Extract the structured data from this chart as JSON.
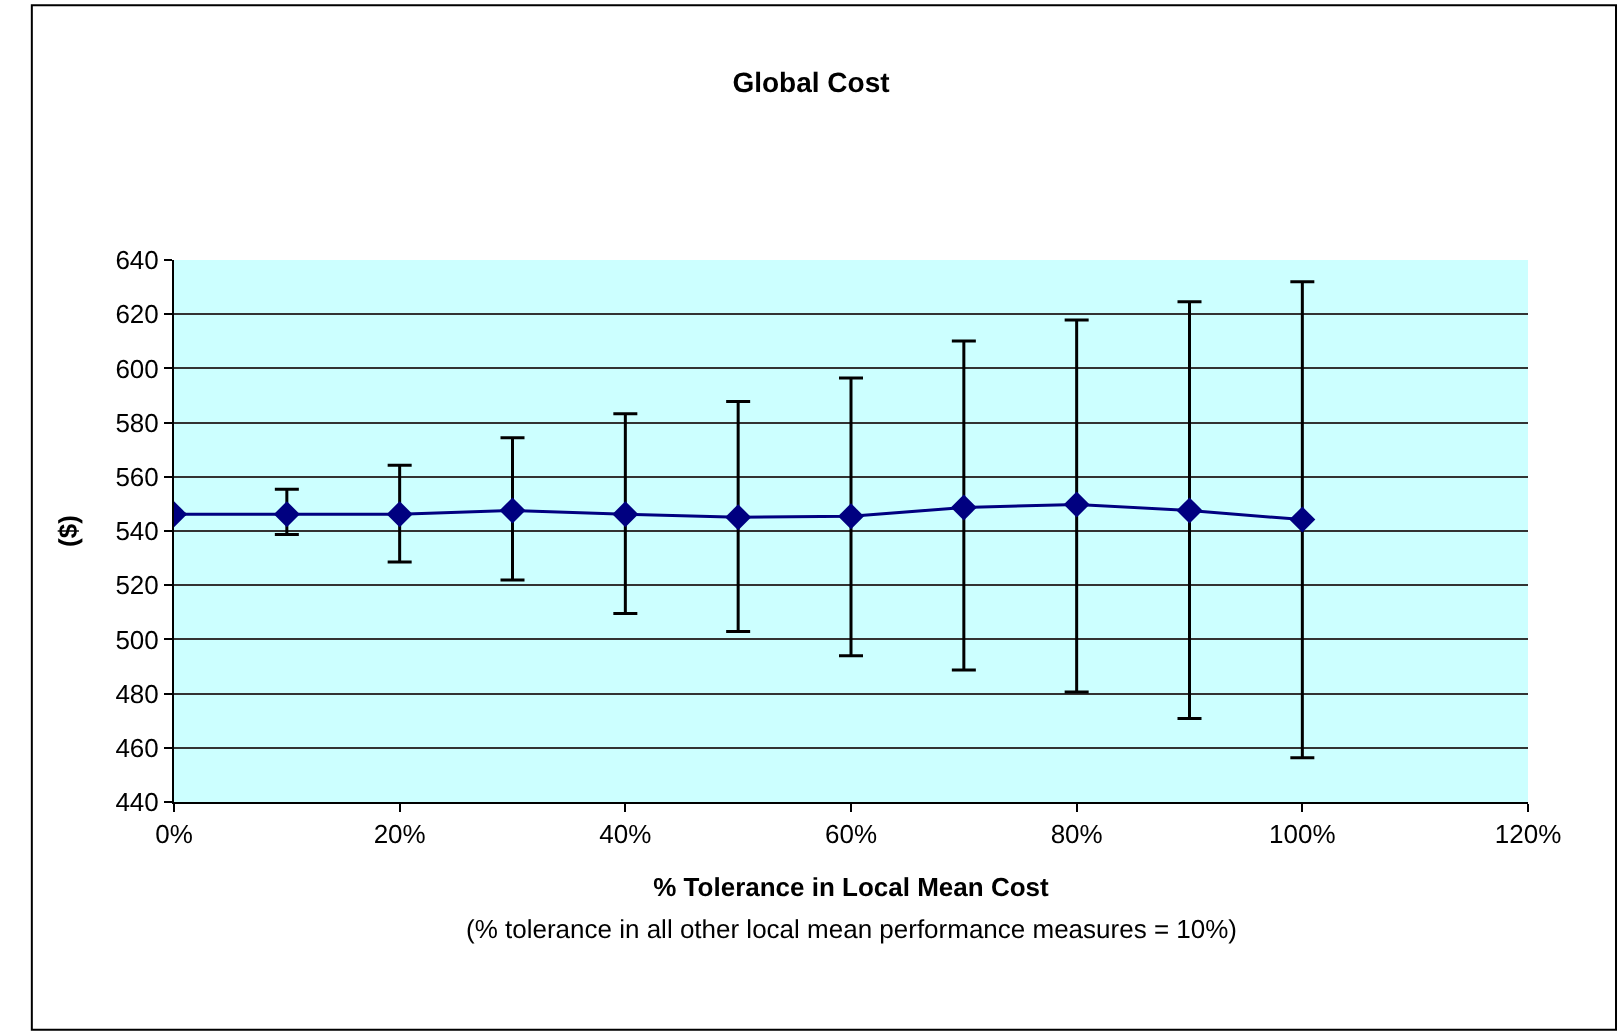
{
  "chart_data": {
    "type": "line",
    "title": "Global Cost",
    "xlabel": "% Tolerance in Local Mean Cost",
    "ylabel": "($)",
    "annotations": [
      "(% tolerance in all other local mean performance measures = 10%)"
    ],
    "x": [
      0,
      10,
      20,
      30,
      40,
      50,
      60,
      70,
      80,
      90,
      100
    ],
    "series": [
      {
        "color": "#000080",
        "values": [
          546.2,
          546.2,
          546.2,
          547.6,
          546.2,
          545.1,
          545.4,
          548.7,
          549.8,
          547.6,
          544.2
        ],
        "errors": [
          null,
          [
            538.7,
            555.4
          ],
          [
            528.6,
            564.3
          ],
          [
            521.9,
            574.4
          ],
          [
            509.6,
            583.3
          ],
          [
            502.9,
            587.8
          ],
          [
            494,
            596.5
          ],
          [
            488.7,
            610.1
          ],
          [
            480.6,
            617.9
          ],
          [
            470.8,
            624.6
          ],
          [
            456.3,
            632
          ]
        ]
      }
    ],
    "xlim": [
      0,
      120
    ],
    "ylim": [
      440,
      640
    ],
    "xticks": [
      {
        "value": 0,
        "label": "0%"
      },
      {
        "value": 20,
        "label": "20%"
      },
      {
        "value": 40,
        "label": "40%"
      },
      {
        "value": 60,
        "label": "60%"
      },
      {
        "value": 80,
        "label": "80%"
      },
      {
        "value": 100,
        "label": "100%"
      },
      {
        "value": 120,
        "label": "120%"
      }
    ],
    "yticks": [
      440,
      460,
      480,
      500,
      520,
      540,
      560,
      580,
      600,
      620,
      640
    ],
    "grid": "y",
    "marker": "diamond",
    "line_style": "solid",
    "legend": false
  }
}
